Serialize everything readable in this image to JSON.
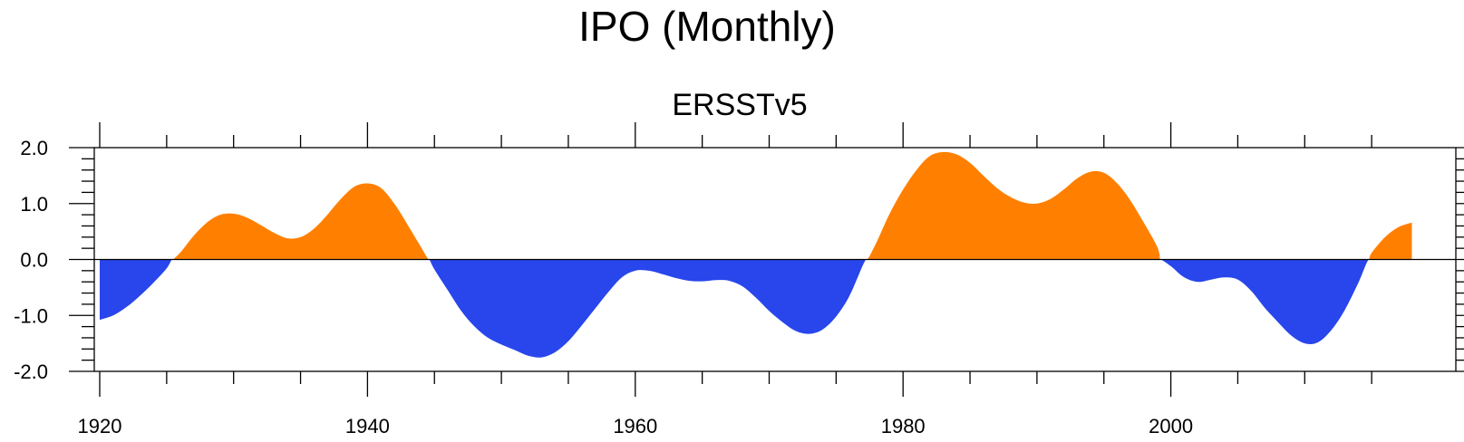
{
  "chart_data": {
    "type": "area",
    "title": "IPO (Monthly)",
    "subtitle": "ERSSTv5",
    "xlabel": "",
    "ylabel": "",
    "xlim": [
      1920,
      2018
    ],
    "ylim": [
      -2.0,
      2.0
    ],
    "xticks": [
      1920,
      1940,
      1960,
      1980,
      2000
    ],
    "xtick_labels": [
      "1920",
      "1940",
      "1960",
      "1980",
      "2000"
    ],
    "yticks": [
      2.0,
      1.0,
      0.0,
      -1.0,
      -2.0
    ],
    "ytick_labels": [
      "2.0",
      "1.0",
      "0.0",
      "-1.0",
      "-2.0"
    ],
    "grid": false,
    "positive_color": "#ff8000",
    "negative_color": "#2846eb",
    "series": [
      {
        "x": [
          1920,
          1921,
          1922,
          1923,
          1924,
          1925,
          1925.4,
          1926,
          1927,
          1928,
          1929,
          1930,
          1931,
          1932,
          1933,
          1934,
          1935,
          1936,
          1937,
          1938,
          1939,
          1940,
          1941,
          1942,
          1943,
          1944,
          1944.6,
          1945,
          1946,
          1947,
          1948,
          1949,
          1950,
          1951,
          1952,
          1953,
          1954,
          1955,
          1956,
          1957,
          1958,
          1959,
          1960,
          1961,
          1962,
          1963,
          1964,
          1965,
          1966,
          1967,
          1968,
          1969,
          1970,
          1971,
          1972,
          1973,
          1974,
          1975,
          1976,
          1977,
          1977.3,
          1978,
          1979,
          1980,
          1981,
          1982,
          1983,
          1984,
          1985,
          1986,
          1987,
          1988,
          1989,
          1990,
          1991,
          1992,
          1993,
          1994,
          1995,
          1996,
          1997,
          1998,
          1999,
          1999.2,
          2000,
          2001,
          2002,
          2003,
          2004,
          2005,
          2006,
          2007,
          2008,
          2009,
          2010,
          2011,
          2012,
          2013,
          2014,
          2014.8,
          2015,
          2016,
          2017,
          2018
        ],
        "y": [
          -1.08,
          -1.0,
          -0.85,
          -0.65,
          -0.42,
          -0.16,
          0.0,
          0.12,
          0.42,
          0.66,
          0.8,
          0.82,
          0.75,
          0.62,
          0.48,
          0.38,
          0.4,
          0.55,
          0.8,
          1.08,
          1.3,
          1.36,
          1.28,
          1.0,
          0.62,
          0.22,
          0.0,
          -0.18,
          -0.55,
          -0.92,
          -1.2,
          -1.4,
          -1.52,
          -1.62,
          -1.72,
          -1.75,
          -1.66,
          -1.46,
          -1.18,
          -0.88,
          -0.58,
          -0.32,
          -0.2,
          -0.2,
          -0.26,
          -0.33,
          -0.38,
          -0.39,
          -0.37,
          -0.38,
          -0.48,
          -0.68,
          -0.92,
          -1.12,
          -1.28,
          -1.33,
          -1.25,
          -1.02,
          -0.65,
          -0.1,
          0.0,
          0.3,
          0.82,
          1.25,
          1.6,
          1.85,
          1.92,
          1.88,
          1.73,
          1.5,
          1.28,
          1.12,
          1.02,
          1.0,
          1.08,
          1.25,
          1.45,
          1.57,
          1.55,
          1.36,
          1.05,
          0.65,
          0.22,
          0.0,
          -0.12,
          -0.32,
          -0.4,
          -0.36,
          -0.32,
          -0.36,
          -0.56,
          -0.86,
          -1.12,
          -1.36,
          -1.5,
          -1.48,
          -1.26,
          -0.9,
          -0.42,
          0.0,
          0.12,
          0.4,
          0.58,
          0.66
        ]
      }
    ]
  }
}
